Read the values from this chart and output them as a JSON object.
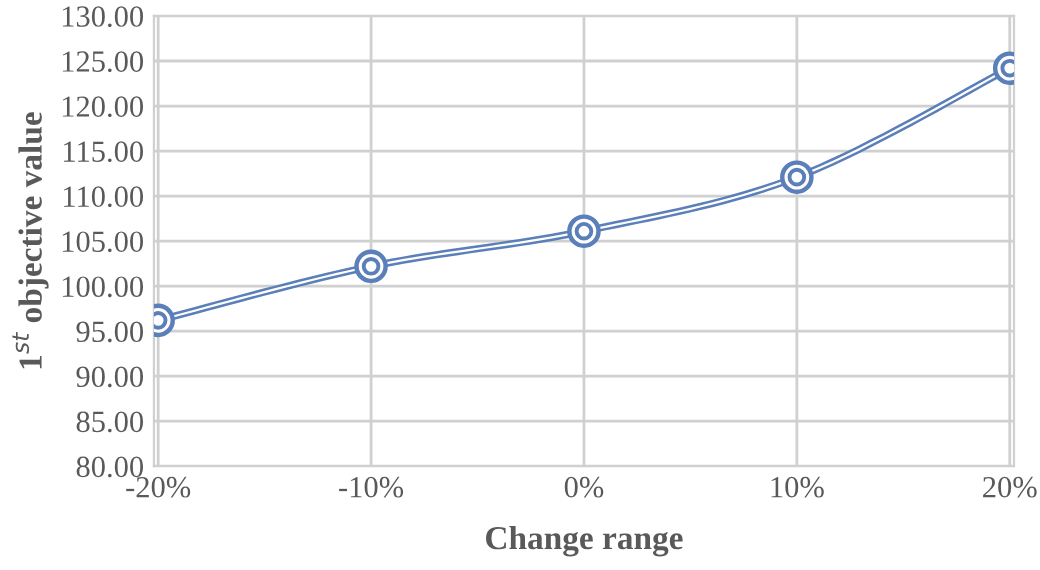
{
  "chart_data": {
    "type": "line",
    "xlabel": "Change range",
    "ylabel": "1$^{st}$ objective value",
    "categories": [
      "-20%",
      "-10%",
      "0%",
      "10%",
      "20%"
    ],
    "series": [
      {
        "color": "#5b7fb8",
        "values": [
          96.2,
          102.2,
          106.1,
          112.1,
          124.2
        ]
      }
    ],
    "ylim": [
      80,
      130
    ],
    "yticks": [
      {
        "value": 80,
        "label": "80.00"
      },
      {
        "value": 85,
        "label": "85.00"
      },
      {
        "value": 90,
        "label": "90.00"
      },
      {
        "value": 95,
        "label": "95.00"
      },
      {
        "value": 100,
        "label": "100.00"
      },
      {
        "value": 105,
        "label": "105.00"
      },
      {
        "value": 110,
        "label": "110.00"
      },
      {
        "value": 115,
        "label": "115.00"
      },
      {
        "value": 120,
        "label": "120.00"
      },
      {
        "value": 125,
        "label": "125.00"
      },
      {
        "value": 130,
        "label": "130.00"
      }
    ],
    "grid": true,
    "marker": "circle",
    "line_style": "solid"
  }
}
